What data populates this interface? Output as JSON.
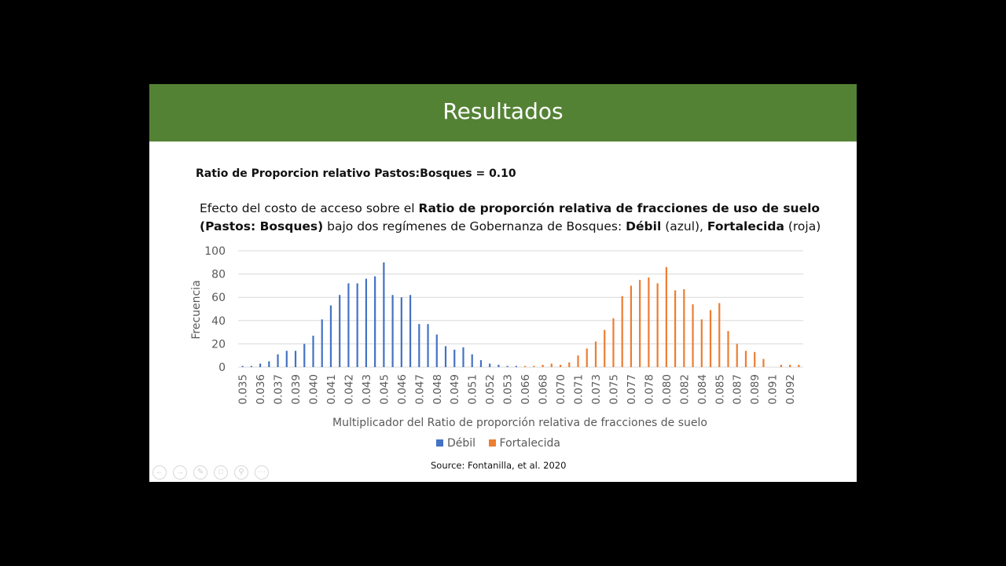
{
  "slide": {
    "title": "Resultados",
    "ratio_line": "Ratio de Proporcion relativo Pastos:Bosques = 0.10",
    "description": {
      "part1": "Efecto del costo de acceso sobre el ",
      "bold1": "Ratio de proporción relativa de fracciones de uso de suelo (Pastos: Bosques)",
      "part2": " bajo dos regímenes de Gobernanza de Bosques:  ",
      "bold2": "Débil",
      "part3": " (azul), ",
      "bold3": "Fortalecida",
      "part4": " (roja)"
    },
    "source": "Source: Fontanilla, et al. 2020",
    "controls": [
      "previous-icon",
      "next-icon",
      "pen-icon",
      "slides-icon",
      "zoom-icon",
      "more-icon"
    ]
  },
  "chart_data": {
    "type": "bar",
    "xlabel": "Multiplicador del Ratio de proporción relativa de fracciones de suelo",
    "ylabel": "Frecuencia",
    "ylim": [
      0,
      100
    ],
    "yticks": [
      0,
      20,
      40,
      60,
      80,
      100
    ],
    "grid": true,
    "legend_position": "bottom",
    "categories": [
      "0.035",
      "",
      "0.036",
      "",
      "0.037",
      "",
      "0.039",
      "",
      "0.040",
      "",
      "0.041",
      "",
      "0.042",
      "",
      "0.043",
      "",
      "0.045",
      "",
      "0.046",
      "",
      "0.047",
      "",
      "0.048",
      "",
      "0.049",
      "",
      "0.051",
      "",
      "0.052",
      "",
      "0.053",
      "",
      "0.066",
      "",
      "0.068",
      "",
      "0.070",
      "",
      "0.071",
      "",
      "0.073",
      "",
      "0.075",
      "",
      "0.077",
      "",
      "0.078",
      "",
      "0.080",
      "",
      "0.082",
      "",
      "0.084",
      "",
      "0.085",
      "",
      "0.087",
      "",
      "0.089",
      "",
      "0.091",
      "",
      "0.092",
      ""
    ],
    "series": [
      {
        "name": "Débil",
        "color": "#4472C4",
        "values": [
          1,
          1,
          3,
          5,
          11,
          14,
          14,
          20,
          27,
          41,
          53,
          62,
          72,
          72,
          76,
          78,
          90,
          62,
          60,
          62,
          37,
          37,
          28,
          18,
          15,
          17,
          11,
          6,
          3,
          2,
          1,
          1,
          0,
          0,
          0,
          0,
          0,
          0,
          0,
          0,
          0,
          0,
          0,
          0,
          0,
          0,
          0,
          0,
          0,
          0,
          0,
          0,
          0,
          0,
          0,
          0,
          0,
          0,
          0,
          0,
          0,
          0,
          0,
          0
        ]
      },
      {
        "name": "Fortalecida",
        "color": "#ED7D31",
        "values": [
          0,
          0,
          0,
          0,
          0,
          0,
          0,
          0,
          0,
          0,
          0,
          0,
          0,
          0,
          0,
          0,
          0,
          0,
          0,
          0,
          0,
          0,
          0,
          0,
          0,
          0,
          0,
          0,
          0,
          0,
          0,
          0,
          1,
          1,
          2,
          3,
          2,
          4,
          10,
          16,
          22,
          32,
          42,
          61,
          70,
          75,
          77,
          72,
          86,
          66,
          67,
          54,
          41,
          49,
          55,
          31,
          20,
          14,
          13,
          7,
          0,
          2,
          2,
          2
        ]
      }
    ]
  }
}
